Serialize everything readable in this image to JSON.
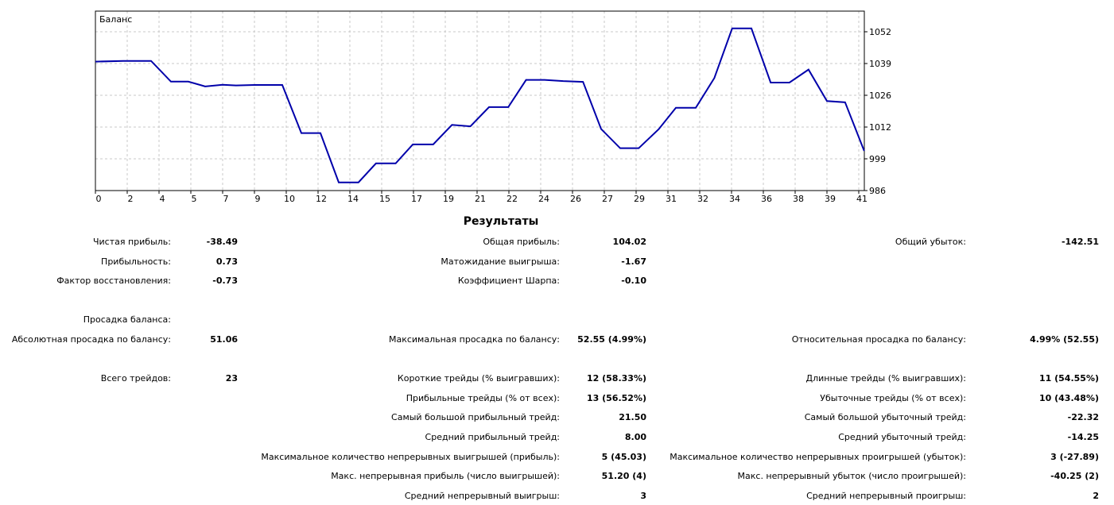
{
  "chart_data": {
    "type": "line",
    "title": "Баланс",
    "xlabel": "",
    "ylabel": "",
    "x_tick_labels": [
      "0",
      "2",
      "4",
      "5",
      "7",
      "9",
      "10",
      "12",
      "14",
      "15",
      "17",
      "19",
      "21",
      "22",
      "24",
      "26",
      "27",
      "29",
      "31",
      "32",
      "34",
      "36",
      "38",
      "39",
      "41"
    ],
    "y_ticks": [
      986,
      999,
      1012,
      1026,
      1039,
      1052
    ],
    "ylim": [
      986,
      1060.6
    ],
    "xlim": [
      0,
      24.17
    ],
    "grid": true,
    "line_color": "#0000aa",
    "series": [
      {
        "name": "Баланс",
        "x": [
          0,
          0.875,
          1.75,
          2.375,
          2.92,
          3.45,
          4,
          4.42,
          5,
          5.875,
          6.475,
          7.075,
          7.65,
          8.27,
          8.82,
          9.44,
          9.98,
          10.62,
          11.21,
          11.79,
          12.375,
          12.98,
          13.54,
          14.12,
          14.71,
          15.33,
          15.9,
          16.5,
          17.08,
          17.71,
          18.25,
          18.875,
          19.46,
          20.02,
          20.625,
          21.23,
          21.82,
          22.42,
          23,
          23.57,
          24.17
        ],
        "y": [
          1039.6,
          1039.9,
          1039.9,
          1031.3,
          1031.3,
          1029.3,
          1030.0,
          1029.7,
          1029.9,
          1029.9,
          1009.9,
          1009.9,
          989.4,
          989.4,
          997.3,
          997.3,
          1005.2,
          1005.2,
          1013.3,
          1012.7,
          1020.7,
          1020.7,
          1032.0,
          1032.0,
          1031.5,
          1031.2,
          1011.6,
          1003.6,
          1003.6,
          1011.5,
          1020.4,
          1020.4,
          1032.8,
          1053.4,
          1053.4,
          1030.9,
          1030.9,
          1036.3,
          1023.2,
          1022.7,
          1002.5
        ]
      }
    ]
  },
  "results": {
    "title": "Результаты",
    "rows": [
      [
        [
          "Чистая прибыль:",
          "-38.49"
        ],
        [
          "Общая прибыль:",
          "104.02"
        ],
        [
          "Общий убыток:",
          "-142.51"
        ]
      ],
      [
        [
          "Прибыльность:",
          "0.73"
        ],
        [
          "Матожидание выигрыша:",
          "-1.67"
        ],
        null
      ],
      [
        [
          "Фактор восстановления:",
          "-0.73"
        ],
        [
          "Коэффициент Шарпа:",
          "-0.10"
        ],
        null
      ],
      null,
      [
        [
          "Просадка баланса:",
          ""
        ],
        null,
        null
      ],
      [
        [
          "Абсолютная просадка по балансу:",
          "51.06"
        ],
        [
          "Максимальная просадка по балансу:",
          "52.55 (4.99%)"
        ],
        [
          "Относительная просадка по балансу:",
          "4.99% (52.55)"
        ]
      ],
      null,
      [
        [
          "Всего трейдов:",
          "23"
        ],
        [
          "Короткие трейды (% выигравших):",
          "12 (58.33%)"
        ],
        [
          "Длинные трейды (% выигравших):",
          "11 (54.55%)"
        ]
      ],
      [
        null,
        [
          "Прибыльные трейды (% от всех):",
          "13 (56.52%)"
        ],
        [
          "Убыточные трейды (% от всех):",
          "10 (43.48%)"
        ]
      ],
      [
        null,
        [
          "Самый большой прибыльный трейд:",
          "21.50"
        ],
        [
          "Самый большой убыточный трейд:",
          "-22.32"
        ]
      ],
      [
        null,
        [
          "Средний прибыльный трейд:",
          "8.00"
        ],
        [
          "Средний убыточный трейд:",
          "-14.25"
        ]
      ],
      [
        null,
        [
          "Максимальное количество непрерывных выигрышей (прибыль):",
          "5 (45.03)"
        ],
        [
          "Максимальное количество непрерывных проигрышей (убыток):",
          "3 (-27.89)"
        ]
      ],
      [
        null,
        [
          "Макс. непрерывная прибыль (число выигрышей):",
          "51.20 (4)"
        ],
        [
          "Макс. непрерывный убыток (число проигрышей):",
          "-40.25 (2)"
        ]
      ],
      [
        null,
        [
          "Средний непрерывный выигрыш:",
          "3"
        ],
        [
          "Средний непрерывный проигрыш:",
          "2"
        ]
      ]
    ]
  }
}
